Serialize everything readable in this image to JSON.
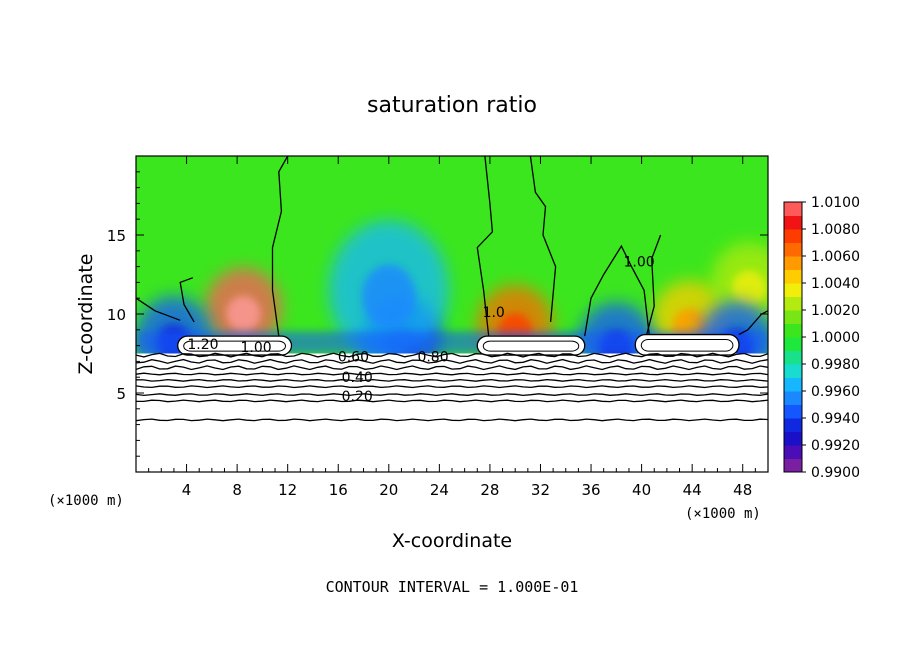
{
  "chart_data": {
    "type": "heatmap",
    "title": "saturation ratio",
    "xlabel": "X-coordinate",
    "ylabel": "Z-coordinate",
    "x_unit": "(×1000 m)",
    "footer": "CONTOUR INTERVAL = 1.000E-01",
    "xlim": [
      0,
      50
    ],
    "ylim": [
      0,
      20
    ],
    "x_ticks": [
      4,
      8,
      12,
      16,
      20,
      24,
      28,
      32,
      36,
      40,
      44,
      48
    ],
    "y_ticks": [
      5,
      10,
      15
    ],
    "colorbar": {
      "min": 0.99,
      "max": 1.01,
      "tick_labels": [
        "1.0100",
        "1.0080",
        "1.0060",
        "1.0040",
        "1.0020",
        "1.0000",
        "0.9980",
        "0.9960",
        "0.9940",
        "0.9920",
        "0.9900"
      ],
      "levels": [
        {
          "value": 0.99,
          "color": "#7a1fa2"
        },
        {
          "value": 0.991,
          "color": "#4b0db5"
        },
        {
          "value": 0.992,
          "color": "#1a10c8"
        },
        {
          "value": 0.993,
          "color": "#0f28e0"
        },
        {
          "value": 0.994,
          "color": "#1456ff"
        },
        {
          "value": 0.995,
          "color": "#1a88ff"
        },
        {
          "value": 0.996,
          "color": "#17b7ff"
        },
        {
          "value": 0.997,
          "color": "#19dcd0"
        },
        {
          "value": 0.998,
          "color": "#19e08a"
        },
        {
          "value": 0.999,
          "color": "#1ee83c"
        },
        {
          "value": 1.0,
          "color": "#3ce61e"
        },
        {
          "value": 1.001,
          "color": "#78e614"
        },
        {
          "value": 1.002,
          "color": "#b4ea10"
        },
        {
          "value": 1.003,
          "color": "#f0ee0a"
        },
        {
          "value": 1.004,
          "color": "#ffcc00"
        },
        {
          "value": 1.005,
          "color": "#ff9a00"
        },
        {
          "value": 1.006,
          "color": "#ff6a00"
        },
        {
          "value": 1.007,
          "color": "#ff3c00"
        },
        {
          "value": 1.008,
          "color": "#f01414"
        },
        {
          "value": 1.009,
          "color": "#ff5a5a"
        },
        {
          "value": 1.01,
          "color": "#ff9a9a"
        }
      ]
    },
    "contour_labels": [
      {
        "text": "1.20",
        "x": 5.3,
        "z": 7.8
      },
      {
        "text": "1.00",
        "x": 9.5,
        "z": 7.6
      },
      {
        "text": "0.60",
        "x": 17.2,
        "z": 7.0
      },
      {
        "text": "0.80",
        "x": 23.5,
        "z": 7.0
      },
      {
        "text": "0.40",
        "x": 17.5,
        "z": 5.7
      },
      {
        "text": "0.20",
        "x": 17.5,
        "z": 4.5
      },
      {
        "text": "1.00",
        "x": 39.8,
        "z": 13.0
      },
      {
        "text": "1.0",
        "x": 28.3,
        "z": 9.8
      }
    ],
    "background_value": 1.0002,
    "anomalies": [
      {
        "type": "moist",
        "x": 8.5,
        "z": 10.4,
        "value": 1.009
      },
      {
        "type": "moist",
        "x": 30.0,
        "z": 9.3,
        "value": 1.006
      },
      {
        "type": "moist",
        "x": 43.8,
        "z": 9.6,
        "value": 1.0045
      },
      {
        "type": "moist",
        "x": 48.5,
        "z": 12.0,
        "value": 1.0025
      },
      {
        "type": "dry",
        "x": 21.0,
        "z": 8.6,
        "value": 0.9925
      },
      {
        "type": "dry",
        "x": 20.0,
        "z": 11.5,
        "value": 0.9958
      },
      {
        "type": "dry",
        "x": 3.0,
        "z": 8.6,
        "value": 0.9938
      },
      {
        "type": "dry",
        "x": 38.0,
        "z": 8.2,
        "value": 0.9935
      },
      {
        "type": "dry",
        "x": 47.5,
        "z": 8.3,
        "value": 0.9935
      }
    ],
    "clouds": [
      {
        "x0": 3.3,
        "x1": 12.3,
        "ztop": 8.6
      },
      {
        "x0": 27.0,
        "x1": 35.5,
        "ztop": 8.6
      },
      {
        "x0": 39.5,
        "x1": 47.7,
        "ztop": 8.7
      }
    ],
    "layer_levels": [
      7.4,
      7.0,
      6.6,
      6.2,
      5.8,
      5.4,
      4.9,
      4.5,
      3.3
    ]
  }
}
